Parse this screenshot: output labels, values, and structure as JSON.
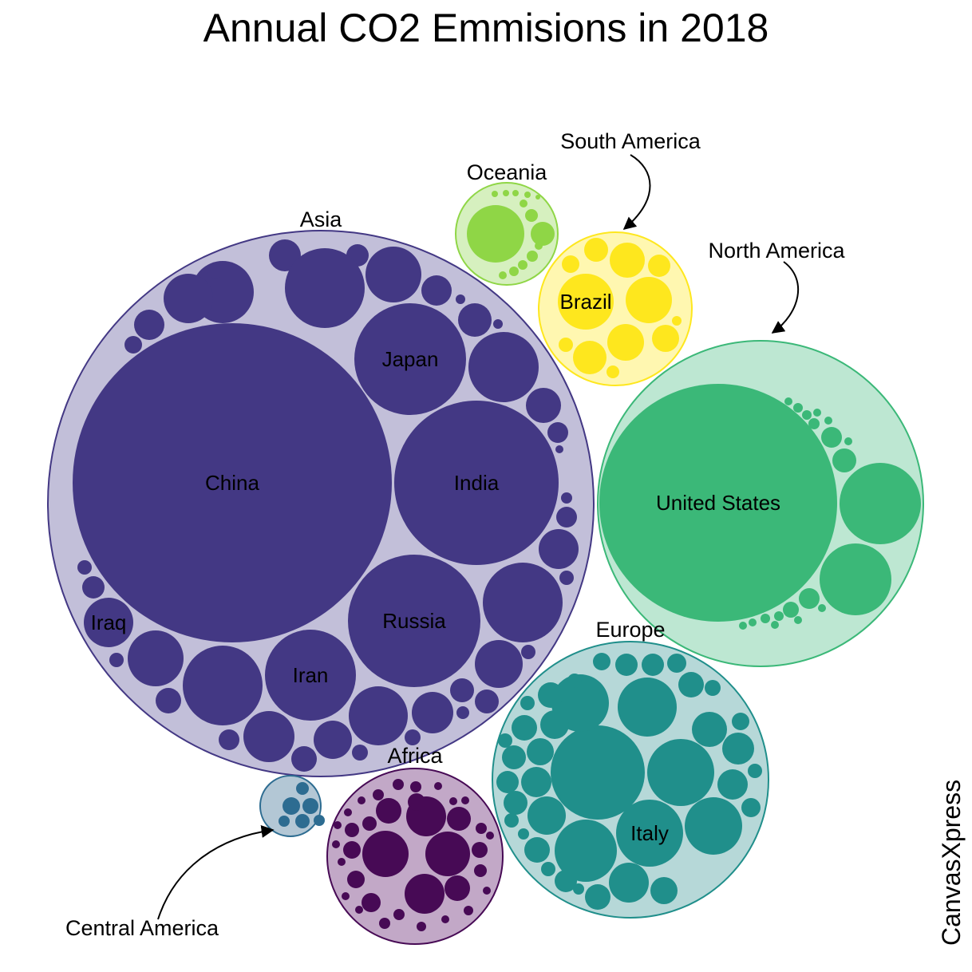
{
  "chart_data": {
    "type": "bubble",
    "title": "Annual CO2 Emmisions in 2018",
    "branding": "CanvasXpress",
    "groups": [
      {
        "name": "Asia",
        "color": "#433884",
        "fill": "#c2bfd9",
        "countries": [
          {
            "name": "China",
            "value": 10060
          },
          {
            "name": "India",
            "value": 2650
          },
          {
            "name": "Russia",
            "value": 1710
          },
          {
            "name": "Japan",
            "value": 1160
          },
          {
            "name": "Iran",
            "value": 720
          },
          {
            "name": "Iraq",
            "value": 200
          }
        ]
      },
      {
        "name": "North America",
        "color": "#3bb878",
        "fill": "#bde7d2",
        "countries": [
          {
            "name": "United States",
            "value": 5420
          }
        ]
      },
      {
        "name": "Europe",
        "color": "#208f8b",
        "fill": "#b6d8d8",
        "countries": [
          {
            "name": "Italy",
            "value": 340
          }
        ]
      },
      {
        "name": "Africa",
        "color": "#470a55",
        "fill": "#c2a8c7",
        "countries": []
      },
      {
        "name": "South America",
        "color": "#fee71e",
        "fill": "#fff7b0",
        "countries": [
          {
            "name": "Brazil",
            "value": 460
          }
        ]
      },
      {
        "name": "Oceania",
        "color": "#8fd646",
        "fill": "#d6f0bf",
        "countries": []
      },
      {
        "name": "Central America",
        "color": "#2d6c91",
        "fill": "#b3c7d5",
        "countries": []
      }
    ]
  }
}
